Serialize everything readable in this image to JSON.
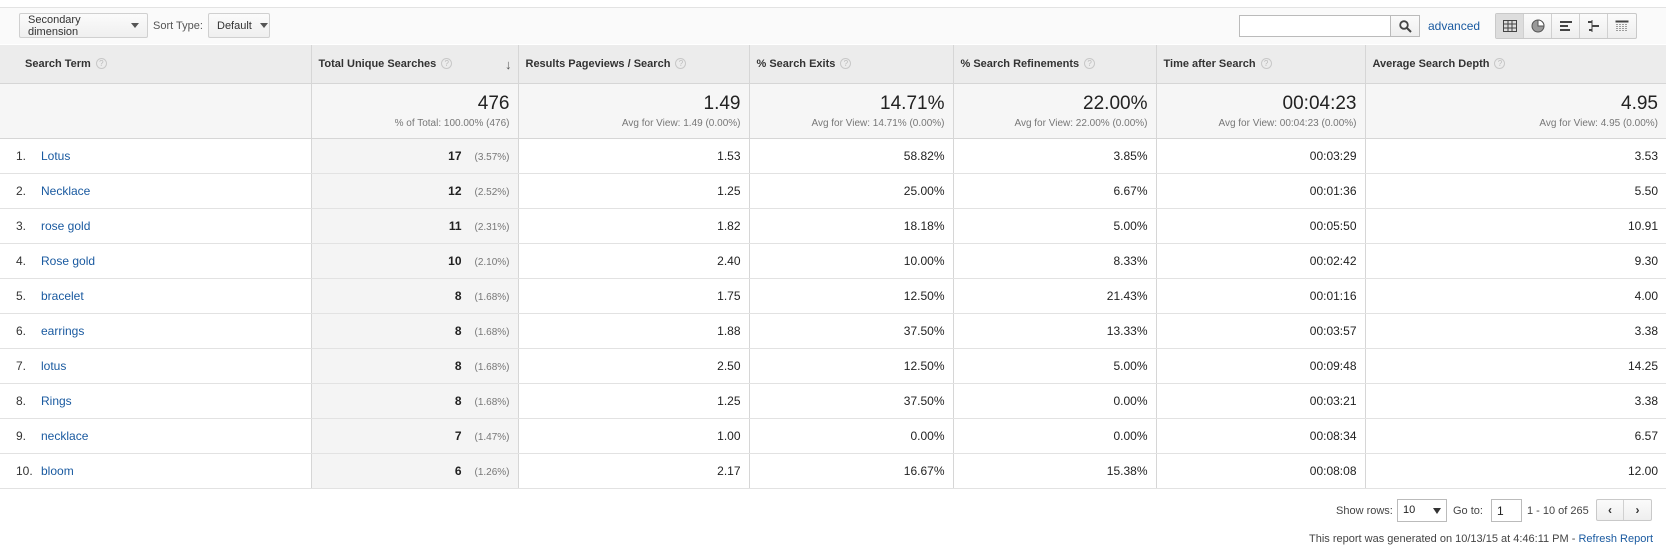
{
  "toolbar": {
    "secondary_dimension_label": "Secondary dimension",
    "sort_type_label": "Sort Type:",
    "sort_type_value": "Default",
    "search_value": "",
    "advanced_label": "advanced",
    "view_icons": [
      "table-view-icon",
      "pie-view-icon",
      "performance-view-icon",
      "comparison-view-icon",
      "pivot-view-icon"
    ]
  },
  "table": {
    "columns": [
      {
        "label": "Search Term"
      },
      {
        "label": "Total Unique Searches",
        "sorted": "desc"
      },
      {
        "label": "Results Pageviews / Search"
      },
      {
        "label": "% Search Exits"
      },
      {
        "label": "% Search Refinements"
      },
      {
        "label": "Time after Search"
      },
      {
        "label": "Average Search Depth"
      }
    ],
    "totals": [
      {
        "value": "476",
        "sub": "% of Total: 100.00% (476)"
      },
      {
        "value": "1.49",
        "sub": "Avg for View: 1.49 (0.00%)"
      },
      {
        "value": "14.71%",
        "sub": "Avg for View: 14.71% (0.00%)"
      },
      {
        "value": "22.00%",
        "sub": "Avg for View: 22.00% (0.00%)"
      },
      {
        "value": "00:04:23",
        "sub": "Avg for View: 00:04:23 (0.00%)"
      },
      {
        "value": "4.95",
        "sub": "Avg for View: 4.95 (0.00%)"
      }
    ],
    "rows": [
      {
        "idx": "1.",
        "term": "Lotus",
        "searches": "17",
        "searches_pct": "(3.57%)",
        "pageviews": "1.53",
        "exits": "58.82%",
        "refinements": "3.85%",
        "time": "00:03:29",
        "depth": "3.53"
      },
      {
        "idx": "2.",
        "term": "Necklace",
        "searches": "12",
        "searches_pct": "(2.52%)",
        "pageviews": "1.25",
        "exits": "25.00%",
        "refinements": "6.67%",
        "time": "00:01:36",
        "depth": "5.50"
      },
      {
        "idx": "3.",
        "term": "rose gold",
        "searches": "11",
        "searches_pct": "(2.31%)",
        "pageviews": "1.82",
        "exits": "18.18%",
        "refinements": "5.00%",
        "time": "00:05:50",
        "depth": "10.91"
      },
      {
        "idx": "4.",
        "term": "Rose gold",
        "searches": "10",
        "searches_pct": "(2.10%)",
        "pageviews": "2.40",
        "exits": "10.00%",
        "refinements": "8.33%",
        "time": "00:02:42",
        "depth": "9.30"
      },
      {
        "idx": "5.",
        "term": "bracelet",
        "searches": "8",
        "searches_pct": "(1.68%)",
        "pageviews": "1.75",
        "exits": "12.50%",
        "refinements": "21.43%",
        "time": "00:01:16",
        "depth": "4.00"
      },
      {
        "idx": "6.",
        "term": "earrings",
        "searches": "8",
        "searches_pct": "(1.68%)",
        "pageviews": "1.88",
        "exits": "37.50%",
        "refinements": "13.33%",
        "time": "00:03:57",
        "depth": "3.38"
      },
      {
        "idx": "7.",
        "term": "lotus",
        "searches": "8",
        "searches_pct": "(1.68%)",
        "pageviews": "2.50",
        "exits": "12.50%",
        "refinements": "5.00%",
        "time": "00:09:48",
        "depth": "14.25"
      },
      {
        "idx": "8.",
        "term": "Rings",
        "searches": "8",
        "searches_pct": "(1.68%)",
        "pageviews": "1.25",
        "exits": "37.50%",
        "refinements": "0.00%",
        "time": "00:03:21",
        "depth": "3.38"
      },
      {
        "idx": "9.",
        "term": "necklace",
        "searches": "7",
        "searches_pct": "(1.47%)",
        "pageviews": "1.00",
        "exits": "0.00%",
        "refinements": "0.00%",
        "time": "00:08:34",
        "depth": "6.57"
      },
      {
        "idx": "10.",
        "term": "bloom",
        "searches": "6",
        "searches_pct": "(1.26%)",
        "pageviews": "2.17",
        "exits": "16.67%",
        "refinements": "15.38%",
        "time": "00:08:08",
        "depth": "12.00"
      }
    ]
  },
  "footer": {
    "show_rows_label": "Show rows:",
    "show_rows_value": "10",
    "goto_label": "Go to:",
    "goto_value": "1",
    "range_label": "1 - 10 of 265",
    "generated_text": "This report was generated on 10/13/15 at 4:46:11 PM - ",
    "refresh_label": "Refresh Report"
  }
}
